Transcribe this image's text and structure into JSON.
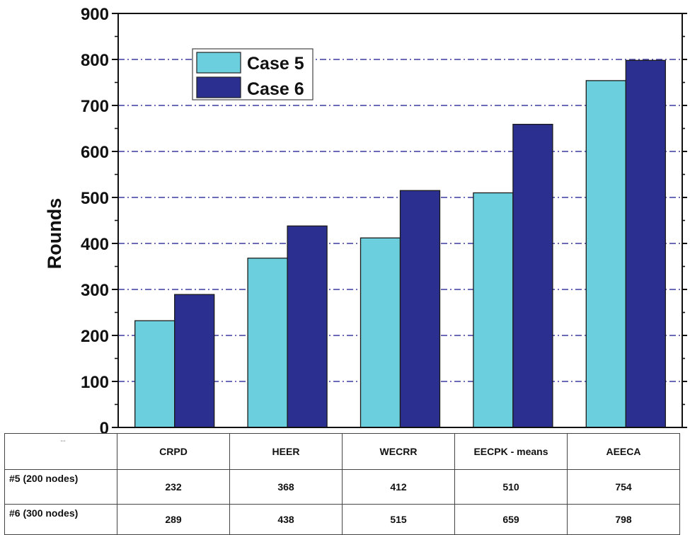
{
  "chart_data": {
    "type": "bar",
    "categories": [
      "CRPD",
      "HEER",
      "WECRR",
      "EECPK - means",
      "AEECA"
    ],
    "series": [
      {
        "name": "Case 5",
        "values": [
          232,
          368,
          412,
          510,
          754
        ],
        "color": "#6ccfdd"
      },
      {
        "name": "Case 6",
        "values": [
          289,
          438,
          515,
          659,
          798
        ],
        "color": "#2b2f8f"
      }
    ],
    "title": "",
    "xlabel": "",
    "ylabel": "Rounds",
    "ylim": [
      0,
      900
    ],
    "yticks": [
      0,
      100,
      200,
      300,
      400,
      500,
      600,
      700,
      800,
      900
    ],
    "grid": true,
    "grid_color": "#3a3aa0",
    "legend": "top-left"
  },
  "table": {
    "corner": "--",
    "rows": [
      {
        "label": "#5 (200 nodes)",
        "values": [
          "232",
          "368",
          "412",
          "510",
          "754"
        ]
      },
      {
        "label": "#6 (300 nodes)",
        "values": [
          "289",
          "438",
          "515",
          "659",
          "798"
        ]
      }
    ]
  }
}
